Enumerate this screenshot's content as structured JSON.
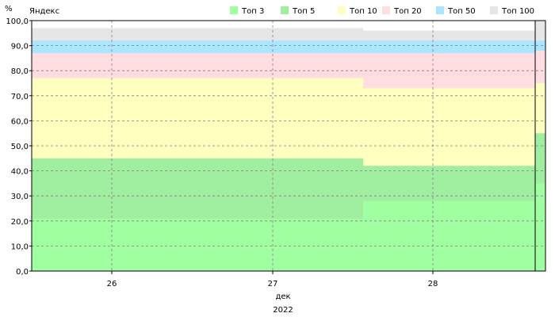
{
  "chart_data": {
    "type": "area",
    "title": "Яндекс",
    "ylabel": "%",
    "xlabel": "дек",
    "year_label": "2022",
    "ylim": [
      0,
      100
    ],
    "yticks": [
      "0,0",
      "10,0",
      "20,0",
      "30,0",
      "40,0",
      "50,0",
      "60,0",
      "70,0",
      "80,0",
      "90,0",
      "100,0"
    ],
    "x_ticks": [
      "26",
      "27",
      "28"
    ],
    "x": [
      "2022-12-25",
      "2022-12-26",
      "2022-12-27",
      "2022-12-28",
      "2022-12-29"
    ],
    "series": [
      {
        "name": "Топ 3",
        "color": "#a0ffa0",
        "values": [
          21,
          21,
          21,
          28,
          35
        ]
      },
      {
        "name": "Топ 5",
        "color": "#a0eea0",
        "values": [
          45,
          45,
          45,
          42,
          55
        ]
      },
      {
        "name": "Топ 10",
        "color": "#ffffc0",
        "values": [
          77,
          77,
          77,
          73,
          75
        ]
      },
      {
        "name": "Топ 20",
        "color": "#ffdde0",
        "values": [
          87,
          87,
          87,
          87,
          88
        ]
      },
      {
        "name": "Топ 50",
        "color": "#aae6ff",
        "values": [
          92,
          92,
          92,
          92,
          92
        ]
      },
      {
        "name": "Топ 100",
        "color": "#e6e6e6",
        "values": [
          97,
          97,
          97,
          96,
          100
        ]
      }
    ],
    "grid": true,
    "legend_position": "top-right"
  }
}
